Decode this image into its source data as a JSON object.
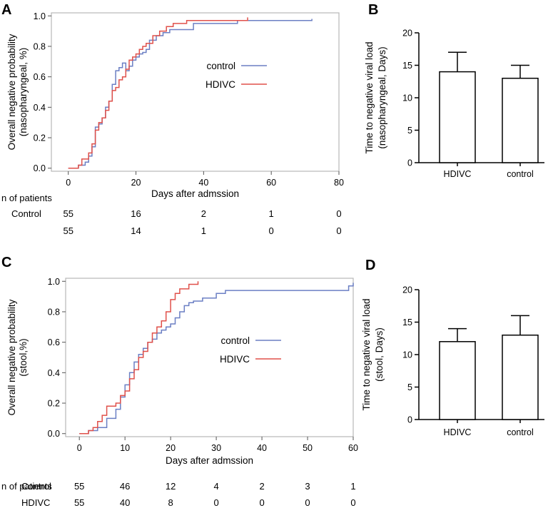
{
  "panel_labels": {
    "A": "A",
    "B": "B",
    "C": "C",
    "D": "D"
  },
  "colors": {
    "control": "#6b7fc4",
    "hdivc": "#e0504a",
    "frame": "#b8b8b8"
  },
  "chart_data": [
    {
      "id": "A",
      "type": "line",
      "step": true,
      "xlabel": "Days after admssion",
      "ylabel_lines": [
        "Overall negative probability",
        "(nasopharyngeal, %)"
      ],
      "xlim": [
        -5,
        80
      ],
      "ylim": [
        -0.02,
        1.02
      ],
      "xticks": [
        0,
        20,
        40,
        60,
        80
      ],
      "yticks": [
        0.0,
        0.2,
        0.4,
        0.6,
        0.8,
        1.0
      ],
      "ytick_labels": [
        "0.0",
        "0.2",
        "0.4",
        "0.6",
        "0.8",
        "1.0"
      ],
      "legend": [
        {
          "name": "control",
          "key": "control"
        },
        {
          "name": "HDIVC",
          "key": "hdivc"
        }
      ],
      "series": [
        {
          "name": "control",
          "key": "control",
          "x": [
            0,
            3,
            5,
            6,
            7,
            8,
            9,
            10,
            11,
            12,
            13,
            14,
            15,
            16,
            17,
            18,
            19,
            20,
            21,
            22,
            23,
            24,
            26,
            28,
            30,
            37,
            50,
            72
          ],
          "y": [
            0.0,
            0.02,
            0.04,
            0.08,
            0.14,
            0.27,
            0.29,
            0.33,
            0.4,
            0.44,
            0.55,
            0.64,
            0.66,
            0.69,
            0.64,
            0.67,
            0.71,
            0.73,
            0.75,
            0.76,
            0.78,
            0.84,
            0.87,
            0.89,
            0.91,
            0.95,
            0.97,
            0.98
          ]
        },
        {
          "name": "HDIVC",
          "key": "hdivc",
          "x": [
            0,
            3,
            4,
            6,
            7,
            8,
            9,
            10,
            11,
            12,
            13,
            14,
            15,
            16,
            17,
            18,
            19,
            20,
            21,
            22,
            23,
            25,
            27,
            29,
            31,
            35,
            53
          ],
          "y": [
            0.0,
            0.02,
            0.06,
            0.1,
            0.16,
            0.25,
            0.3,
            0.33,
            0.38,
            0.44,
            0.51,
            0.53,
            0.58,
            0.6,
            0.65,
            0.71,
            0.73,
            0.75,
            0.78,
            0.8,
            0.82,
            0.87,
            0.9,
            0.93,
            0.95,
            0.97,
            0.99
          ]
        }
      ],
      "risk_table": {
        "header": "n of patients",
        "rows": [
          {
            "label": "Control",
            "values": [
              "55",
              "16",
              "2",
              "1",
              "0"
            ]
          },
          {
            "label": "",
            "values": [
              "55",
              "14",
              "1",
              "0",
              "0"
            ]
          }
        ]
      }
    },
    {
      "id": "B",
      "type": "bar",
      "ylabel_lines": [
        "Time to negative viral load",
        "(nasopharyngeal, Days)"
      ],
      "categories": [
        "HDIVC",
        "control"
      ],
      "values": [
        14,
        13
      ],
      "errors": [
        3,
        2
      ],
      "ylim": [
        0,
        20
      ],
      "yticks": [
        0,
        5,
        10,
        15,
        20
      ]
    },
    {
      "id": "C",
      "type": "line",
      "step": true,
      "xlabel": "Days after admssion",
      "ylabel_lines": [
        "Overall negative probability",
        "(stool,%)"
      ],
      "xlim": [
        -3,
        60
      ],
      "ylim": [
        -0.02,
        1.02
      ],
      "xticks": [
        0,
        10,
        20,
        30,
        40,
        50,
        60
      ],
      "yticks": [
        0.0,
        0.2,
        0.4,
        0.6,
        0.8,
        1.0
      ],
      "ytick_labels": [
        "0.0",
        "0.2",
        "0.4",
        "0.6",
        "0.8",
        "1.0"
      ],
      "legend": [
        {
          "name": "control",
          "key": "control"
        },
        {
          "name": "HDIVC",
          "key": "hdivc"
        }
      ],
      "series": [
        {
          "name": "control",
          "key": "control",
          "x": [
            0,
            2,
            4,
            6,
            8,
            9,
            10,
            11,
            12,
            13,
            14,
            15,
            16,
            17,
            18,
            19,
            20,
            21,
            22,
            23,
            24,
            25,
            27,
            30,
            32,
            59,
            60
          ],
          "y": [
            0.0,
            0.02,
            0.04,
            0.1,
            0.16,
            0.24,
            0.32,
            0.4,
            0.47,
            0.52,
            0.56,
            0.6,
            0.62,
            0.66,
            0.68,
            0.7,
            0.72,
            0.76,
            0.8,
            0.84,
            0.86,
            0.87,
            0.89,
            0.92,
            0.94,
            0.97,
            0.99
          ]
        },
        {
          "name": "HDIVC",
          "key": "hdivc",
          "x": [
            0,
            2,
            3,
            4,
            5,
            6,
            8,
            9,
            10,
            11,
            12,
            13,
            14,
            15,
            16,
            17,
            18,
            19,
            20,
            21,
            22,
            24,
            26
          ],
          "y": [
            0.0,
            0.02,
            0.04,
            0.08,
            0.12,
            0.18,
            0.2,
            0.25,
            0.28,
            0.36,
            0.42,
            0.5,
            0.54,
            0.6,
            0.66,
            0.7,
            0.74,
            0.8,
            0.88,
            0.92,
            0.95,
            0.98,
            1.0
          ]
        }
      ],
      "risk_table": {
        "header": "n of patients",
        "rows": [
          {
            "label": "Control",
            "values": [
              "55",
              "46",
              "12",
              "4",
              "2",
              "3",
              "1"
            ]
          },
          {
            "label": "HDIVC",
            "values": [
              "55",
              "40",
              "8",
              "0",
              "0",
              "0",
              "0"
            ]
          }
        ]
      }
    },
    {
      "id": "D",
      "type": "bar",
      "ylabel_lines": [
        "Time to negative viral load",
        "(stool, Days)"
      ],
      "categories": [
        "HDIVC",
        "control"
      ],
      "values": [
        12,
        13
      ],
      "errors": [
        2,
        3
      ],
      "ylim": [
        0,
        20
      ],
      "yticks": [
        0,
        5,
        10,
        15,
        20
      ]
    }
  ]
}
